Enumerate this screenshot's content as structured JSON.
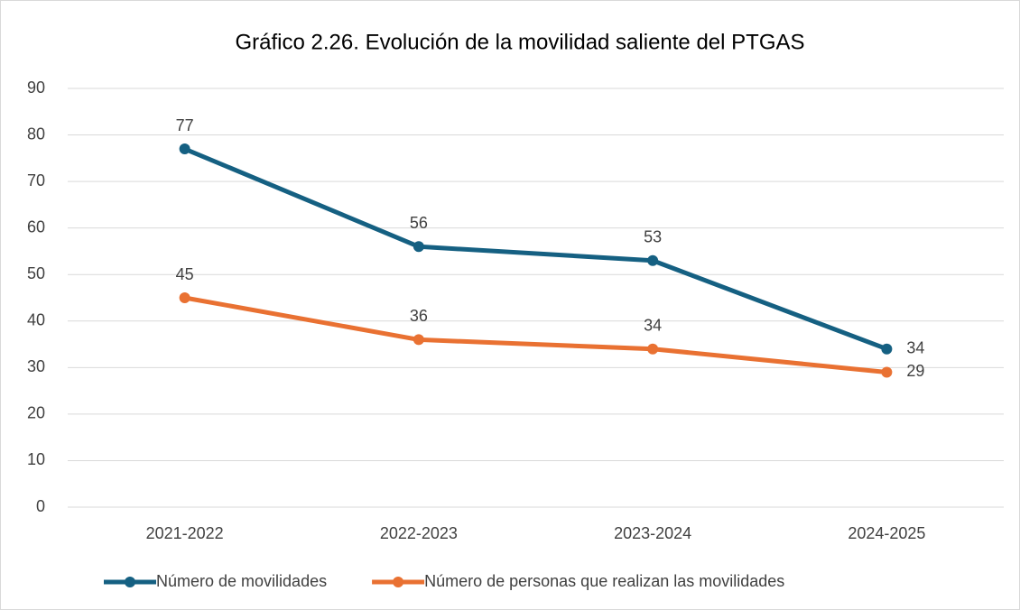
{
  "chart_data": {
    "type": "line",
    "title": "Gráfico 2.26. Evolución de la movilidad saliente del PTGAS",
    "categories": [
      "2021-2022",
      "2022-2023",
      "2023-2024",
      "2024-2025"
    ],
    "series": [
      {
        "name": "Número de movilidades",
        "color": "#156082",
        "values": [
          77,
          56,
          53,
          34
        ]
      },
      {
        "name": "Número de personas que realizan las movilidades",
        "color": "#e97132",
        "values": [
          45,
          36,
          34,
          29
        ]
      }
    ],
    "ylim": [
      0,
      90
    ],
    "yticks": [
      0,
      10,
      20,
      30,
      40,
      50,
      60,
      70,
      80,
      90
    ],
    "grid": true,
    "legend": "bottom"
  }
}
